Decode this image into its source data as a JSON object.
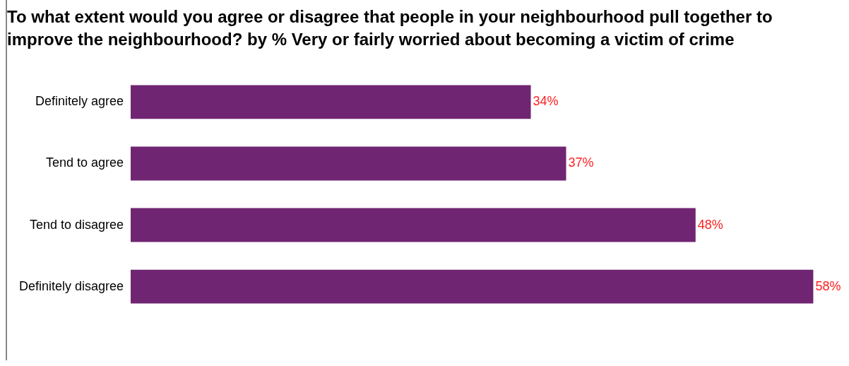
{
  "chart_data": {
    "type": "bar",
    "orientation": "horizontal",
    "title": "To what extent would you agree or disagree that people in your neighbourhood pull together to improve the neighbourhood?  by % Very or fairly worried about becoming a victim of crime",
    "categories": [
      "Definitely agree",
      "Tend to agree",
      "Tend to disagree",
      "Definitely disagree"
    ],
    "values": [
      34,
      37,
      48,
      58
    ],
    "color": "#702572",
    "value_labels": [
      "34%",
      "37%",
      "48%",
      "58%"
    ],
    "grid": false,
    "legend": false
  }
}
